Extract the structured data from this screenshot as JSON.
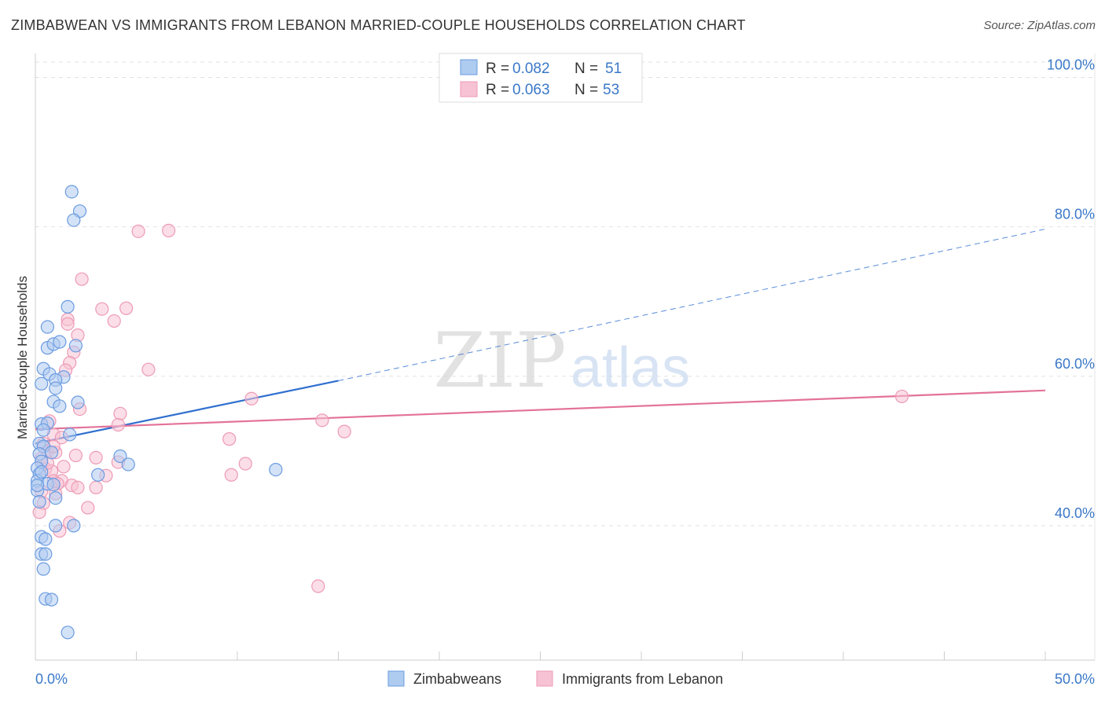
{
  "title": "ZIMBABWEAN VS IMMIGRANTS FROM LEBANON MARRIED-COUPLE HOUSEHOLDS CORRELATION CHART",
  "source": "Source: ZipAtlas.com",
  "watermark": {
    "zip": "ZIP",
    "atlas": "atlas"
  },
  "colors": {
    "blue": "#6b9be0",
    "blue_fill": "#aecbf0",
    "blue_line": "#2f6fcf",
    "pink": "#ee9ab5",
    "pink_fill": "#f7c2d3",
    "pink_line": "#e3729a",
    "axis_text": "#3a78c8",
    "grid": "#e2e2e2"
  },
  "legend": {
    "rows": [
      {
        "r_label": "R =",
        "r_value": "0.082",
        "n_label": "N =",
        "n_value": "51"
      },
      {
        "r_label": "R =",
        "r_value": "0.063",
        "n_label": "N =",
        "n_value": "53"
      }
    ]
  },
  "bottom_legend": [
    "Zimbabweans",
    "Immigrants from Lebanon"
  ],
  "chart_data": {
    "type": "scatter",
    "title": "ZIMBABWEAN VS IMMIGRANTS FROM LEBANON MARRIED-COUPLE HOUSEHOLDS CORRELATION CHART",
    "xlabel": "",
    "ylabel": "Married-couple Households",
    "xlim": [
      0,
      50
    ],
    "ylim": [
      22,
      103
    ],
    "x_tick_labels": [
      "0.0%",
      "50.0%"
    ],
    "y_ticks": [
      40,
      60,
      80,
      100
    ],
    "y_tick_labels": [
      "40.0%",
      "60.0%",
      "80.0%",
      "100.0%"
    ],
    "grid": true,
    "legend_position": "top-center",
    "series": [
      {
        "name": "Zimbabweans",
        "R": 0.082,
        "N": 51,
        "trend": {
          "x0": 0,
          "y0": 51.0,
          "x1": 15.0,
          "y1": 59.4,
          "x_dash_end": 50,
          "y_dash_end": 79.7
        },
        "points": [
          [
            1.8,
            84.7
          ],
          [
            2.2,
            82.1
          ],
          [
            1.9,
            80.9
          ],
          [
            1.6,
            69.3
          ],
          [
            0.6,
            66.6
          ],
          [
            0.6,
            63.8
          ],
          [
            0.9,
            64.3
          ],
          [
            1.2,
            64.6
          ],
          [
            2.0,
            64.1
          ],
          [
            0.4,
            61.0
          ],
          [
            0.7,
            60.3
          ],
          [
            1.4,
            59.9
          ],
          [
            1.0,
            59.5
          ],
          [
            0.3,
            59.0
          ],
          [
            1.0,
            58.4
          ],
          [
            0.9,
            56.6
          ],
          [
            2.1,
            56.5
          ],
          [
            1.2,
            56.0
          ],
          [
            0.3,
            53.6
          ],
          [
            0.6,
            53.7
          ],
          [
            0.4,
            52.8
          ],
          [
            1.7,
            52.2
          ],
          [
            0.2,
            51.0
          ],
          [
            0.4,
            50.6
          ],
          [
            0.2,
            49.6
          ],
          [
            0.3,
            48.6
          ],
          [
            0.8,
            49.8
          ],
          [
            4.2,
            49.3
          ],
          [
            4.6,
            48.2
          ],
          [
            0.1,
            47.7
          ],
          [
            0.2,
            46.9
          ],
          [
            0.1,
            46.0
          ],
          [
            0.6,
            45.6
          ],
          [
            3.1,
            46.8
          ],
          [
            11.9,
            47.5
          ],
          [
            0.9,
            45.5
          ],
          [
            0.1,
            44.7
          ],
          [
            1.0,
            43.7
          ],
          [
            0.2,
            43.2
          ],
          [
            1.0,
            40.0
          ],
          [
            1.9,
            40.0
          ],
          [
            0.3,
            38.5
          ],
          [
            0.5,
            38.2
          ],
          [
            0.3,
            36.2
          ],
          [
            0.5,
            36.2
          ],
          [
            0.4,
            34.2
          ],
          [
            0.5,
            30.2
          ],
          [
            0.8,
            30.1
          ],
          [
            1.6,
            25.7
          ],
          [
            0.1,
            45.4
          ],
          [
            0.3,
            47.2
          ]
        ]
      },
      {
        "name": "Immigrants from Lebanon",
        "R": 0.063,
        "N": 53,
        "trend": {
          "x0": 0,
          "y0": 52.9,
          "x1": 50,
          "y1": 58.1
        },
        "points": [
          [
            5.1,
            79.4
          ],
          [
            6.6,
            79.5
          ],
          [
            2.3,
            73.0
          ],
          [
            3.3,
            69.0
          ],
          [
            4.5,
            69.1
          ],
          [
            1.6,
            67.6
          ],
          [
            1.6,
            67.0
          ],
          [
            3.9,
            67.4
          ],
          [
            2.1,
            65.5
          ],
          [
            1.9,
            63.2
          ],
          [
            1.7,
            61.8
          ],
          [
            1.5,
            60.8
          ],
          [
            5.6,
            60.9
          ],
          [
            2.2,
            55.6
          ],
          [
            4.2,
            55.0
          ],
          [
            10.7,
            57.0
          ],
          [
            42.9,
            57.3
          ],
          [
            0.7,
            54.0
          ],
          [
            14.2,
            54.1
          ],
          [
            4.1,
            53.5
          ],
          [
            0.9,
            52.2
          ],
          [
            0.4,
            51.0
          ],
          [
            15.3,
            52.6
          ],
          [
            1.3,
            51.8
          ],
          [
            9.6,
            51.6
          ],
          [
            0.6,
            50.0
          ],
          [
            1.0,
            49.8
          ],
          [
            0.3,
            49.0
          ],
          [
            2.0,
            49.4
          ],
          [
            3.0,
            49.1
          ],
          [
            4.1,
            48.5
          ],
          [
            10.4,
            48.3
          ],
          [
            0.5,
            47.6
          ],
          [
            1.4,
            47.9
          ],
          [
            0.8,
            47.3
          ],
          [
            3.5,
            46.7
          ],
          [
            9.7,
            46.8
          ],
          [
            0.9,
            46.0
          ],
          [
            1.3,
            46.0
          ],
          [
            1.1,
            45.6
          ],
          [
            1.8,
            45.4
          ],
          [
            2.1,
            45.1
          ],
          [
            3.0,
            45.1
          ],
          [
            1.0,
            44.3
          ],
          [
            0.3,
            44.6
          ],
          [
            0.4,
            43.0
          ],
          [
            2.6,
            42.4
          ],
          [
            0.2,
            41.8
          ],
          [
            1.7,
            40.4
          ],
          [
            1.2,
            39.3
          ],
          [
            14.0,
            31.9
          ],
          [
            0.6,
            48.4
          ],
          [
            0.9,
            50.6
          ]
        ]
      }
    ]
  }
}
